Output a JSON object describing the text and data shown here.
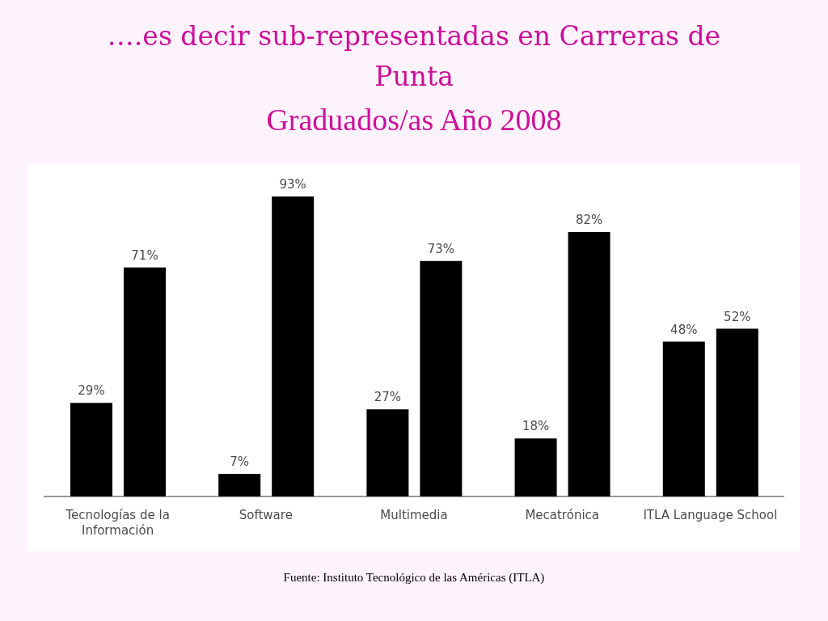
{
  "chart_data": {
    "type": "bar",
    "title": "….es decir sub-representadas en Carreras de Punta",
    "subtitle": "Graduados/as Año 2008",
    "categories": [
      "Tecnologías de la Información",
      "Software",
      "Multimedia",
      "Mecatrónica",
      "ITLA Language School"
    ],
    "series": [
      {
        "color": "#000000",
        "values": [
          29,
          7,
          27,
          18,
          48
        ],
        "value_labels": [
          "29%",
          "7%",
          "27%",
          "18%",
          "48%"
        ]
      },
      {
        "color": "#000000",
        "values": [
          71,
          93,
          73,
          82,
          52
        ],
        "value_labels": [
          "71%",
          "93%",
          "73%",
          "82%",
          "52%"
        ]
      }
    ],
    "annotations": [
      "Fuente: Instituto Tecnológico de las Américas (ITLA)"
    ]
  }
}
